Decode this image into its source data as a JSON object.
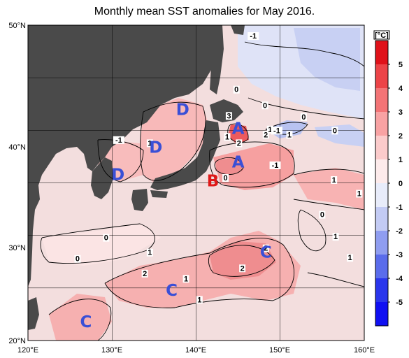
{
  "title": "Monthly mean SST anomalies for May 2016.",
  "map": {
    "lon_range": [
      120,
      160
    ],
    "lat_range": [
      20,
      50
    ],
    "lon_ticks": [
      "120°E",
      "130°E",
      "140°E",
      "150°E",
      "160°E"
    ],
    "lat_ticks": [
      "50°N",
      "40°N",
      "30°N",
      "20°N"
    ],
    "grid": true,
    "land_color": "#4a4a4a",
    "background_color": "#f3dede"
  },
  "colorbar": {
    "unit": "[°C]",
    "ticks": [
      "5",
      "4",
      "3",
      "2",
      "1",
      "0",
      "-1",
      "-2",
      "-3",
      "-4",
      "-5"
    ],
    "colors": [
      "#e0121a",
      "#ec4448",
      "#f37476",
      "#f8a2a3",
      "#fbcbcb",
      "#fdebeb",
      "#e8ecfa",
      "#c3cbf4",
      "#8f9df0",
      "#5a6ceb",
      "#2a36ec",
      "#1010f2"
    ]
  },
  "contour_labels": [
    {
      "text": "-1",
      "lon": 146.8,
      "lat": 48.8
    },
    {
      "text": "0",
      "lon": 144.8,
      "lat": 43.7
    },
    {
      "text": "0",
      "lon": 148.2,
      "lat": 42.2
    },
    {
      "text": "0",
      "lon": 152.8,
      "lat": 41.1
    },
    {
      "text": "0",
      "lon": 156.5,
      "lat": 39.8
    },
    {
      "text": "3",
      "lon": 143.9,
      "lat": 41.2
    },
    {
      "text": "2",
      "lon": 148.3,
      "lat": 39.4
    },
    {
      "text": "1",
      "lon": 148.8,
      "lat": 39.9
    },
    {
      "text": "-1",
      "lon": 149.6,
      "lat": 39.8
    },
    {
      "text": "1",
      "lon": 151.1,
      "lat": 39.4
    },
    {
      "text": "1",
      "lon": 143.7,
      "lat": 39.2
    },
    {
      "text": "2",
      "lon": 145.1,
      "lat": 38.6
    },
    {
      "text": "1",
      "lon": 134.5,
      "lat": 38.6
    },
    {
      "text": "-1",
      "lon": 130.8,
      "lat": 38.9
    },
    {
      "text": "0",
      "lon": 143.5,
      "lat": 35.3
    },
    {
      "text": "-1",
      "lon": 149.4,
      "lat": 36.5
    },
    {
      "text": "1",
      "lon": 156.4,
      "lat": 35.1
    },
    {
      "text": "1",
      "lon": 159.4,
      "lat": 33.8
    },
    {
      "text": "0",
      "lon": 155.0,
      "lat": 31.8
    },
    {
      "text": "1",
      "lon": 156.6,
      "lat": 29.7
    },
    {
      "text": "1",
      "lon": 158.3,
      "lat": 27.7
    },
    {
      "text": "0",
      "lon": 129.3,
      "lat": 29.6
    },
    {
      "text": "0",
      "lon": 125.9,
      "lat": 27.6
    },
    {
      "text": "1",
      "lon": 134.5,
      "lat": 28.2
    },
    {
      "text": "2",
      "lon": 133.9,
      "lat": 26.2
    },
    {
      "text": "1",
      "lon": 138.8,
      "lat": 25.7
    },
    {
      "text": "2",
      "lon": 148.3,
      "lat": 28.6
    },
    {
      "text": "2",
      "lon": 145.5,
      "lat": 26.7
    },
    {
      "text": "1",
      "lon": 140.4,
      "lat": 23.7
    }
  ],
  "region_markers": [
    {
      "text": "D",
      "lon": 138.4,
      "lat": 42.0,
      "color": "#3a4fd6"
    },
    {
      "text": "D",
      "lon": 135.2,
      "lat": 38.4,
      "color": "#3a4fd6"
    },
    {
      "text": "D",
      "lon": 130.7,
      "lat": 35.8,
      "color": "#3a4fd6"
    },
    {
      "text": "A",
      "lon": 145.0,
      "lat": 40.2,
      "color": "#3a4fd6"
    },
    {
      "text": "A",
      "lon": 145.0,
      "lat": 37.0,
      "color": "#3a4fd6"
    },
    {
      "text": "B",
      "lon": 142.0,
      "lat": 35.2,
      "color": "#e01818"
    },
    {
      "text": "C",
      "lon": 148.3,
      "lat": 28.4,
      "color": "#3a4fd6"
    },
    {
      "text": "C",
      "lon": 137.1,
      "lat": 24.8,
      "color": "#3a4fd6"
    },
    {
      "text": "C",
      "lon": 126.9,
      "lat": 21.8,
      "color": "#3a4fd6"
    }
  ]
}
